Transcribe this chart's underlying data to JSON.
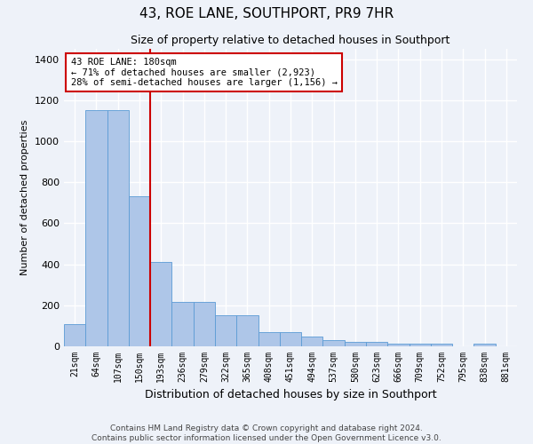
{
  "title": "43, ROE LANE, SOUTHPORT, PR9 7HR",
  "subtitle": "Size of property relative to detached houses in Southport",
  "xlabel": "Distribution of detached houses by size in Southport",
  "ylabel": "Number of detached properties",
  "categories": [
    "21sqm",
    "64sqm",
    "107sqm",
    "150sqm",
    "193sqm",
    "236sqm",
    "279sqm",
    "322sqm",
    "365sqm",
    "408sqm",
    "451sqm",
    "494sqm",
    "537sqm",
    "580sqm",
    "623sqm",
    "666sqm",
    "709sqm",
    "752sqm",
    "795sqm",
    "838sqm",
    "881sqm"
  ],
  "values": [
    110,
    1150,
    1150,
    730,
    410,
    215,
    215,
    150,
    150,
    70,
    70,
    48,
    30,
    20,
    20,
    15,
    15,
    15,
    0,
    15,
    0
  ],
  "bar_color": "#aec6e8",
  "bar_edge_color": "#5b9bd5",
  "vline_x": 3.5,
  "vline_color": "#cc0000",
  "annotation_text": "43 ROE LANE: 180sqm\n← 71% of detached houses are smaller (2,923)\n28% of semi-detached houses are larger (1,156) →",
  "annotation_box_color": "#cc0000",
  "ylim": [
    0,
    1450
  ],
  "yticks": [
    0,
    200,
    400,
    600,
    800,
    1000,
    1200,
    1400
  ],
  "footer_line1": "Contains HM Land Registry data © Crown copyright and database right 2024.",
  "footer_line2": "Contains public sector information licensed under the Open Government Licence v3.0.",
  "bg_color": "#eef2f9",
  "plot_bg_color": "#eef2f9",
  "grid_color": "#ffffff",
  "title_fontsize": 11,
  "subtitle_fontsize": 9,
  "xlabel_fontsize": 9,
  "ylabel_fontsize": 8
}
